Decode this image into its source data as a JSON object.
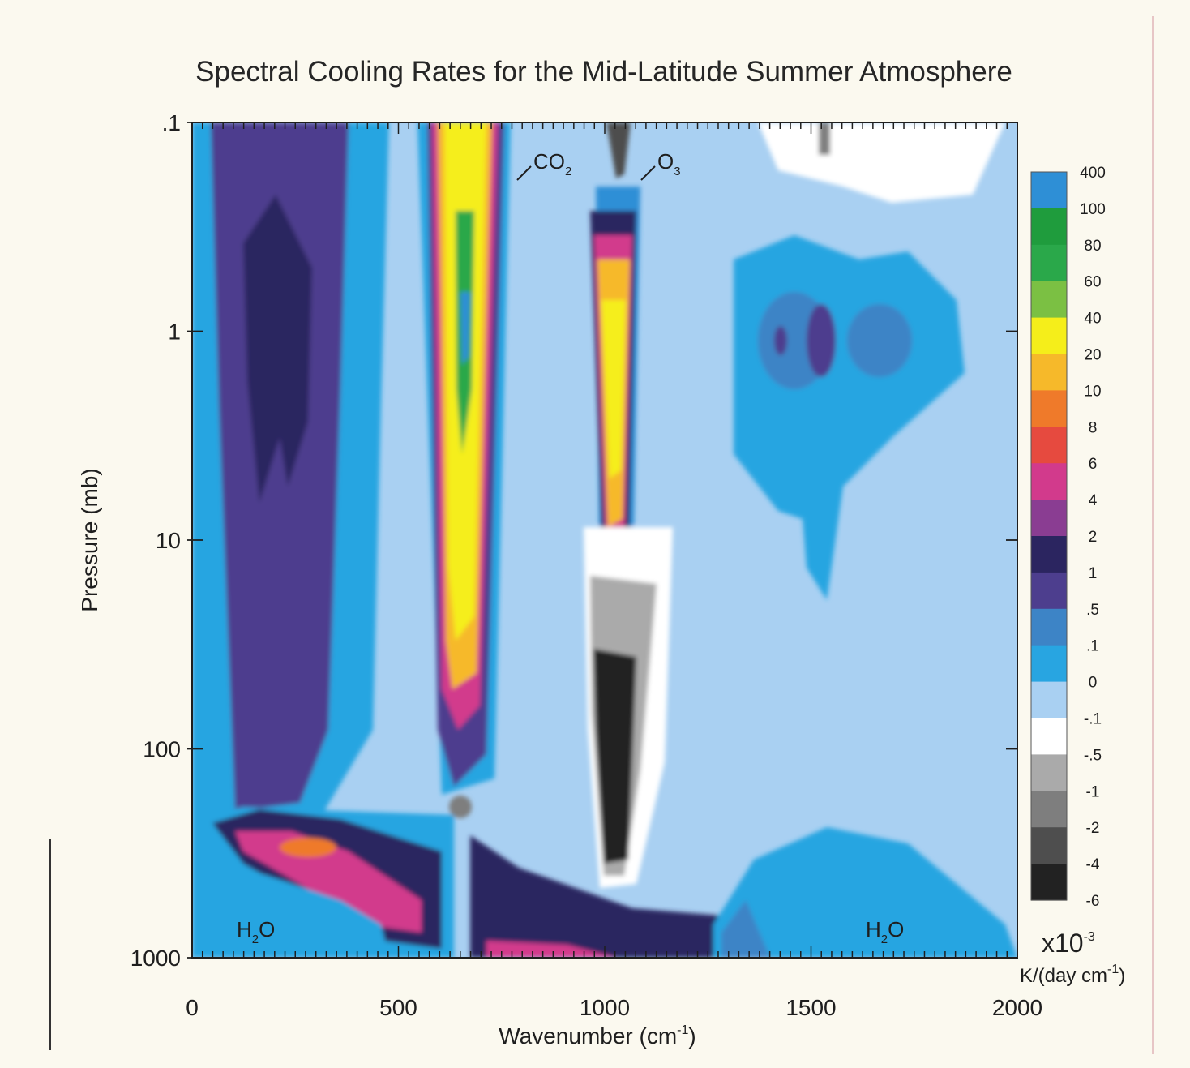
{
  "chart_data": {
    "type": "heatmap",
    "title": "Spectral Cooling Rates for the Mid-Latitude Summer Atmosphere",
    "xlabel": "Wavenumber (cm",
    "xlabel_sup": "-1",
    "xlabel_close": ")",
    "ylabel": "Pressure (mb)",
    "xlim": [
      0,
      2000
    ],
    "ylim": [
      0.1,
      1000
    ],
    "y_scale": "log",
    "y_inverted": true,
    "x_ticks": [
      0,
      500,
      1000,
      1500,
      2000
    ],
    "x_tick_labels": [
      "0",
      "500",
      "1000",
      "1500",
      "2000"
    ],
    "y_ticks": [
      0.1,
      1,
      10,
      100,
      1000
    ],
    "y_tick_labels": [
      ".1",
      "1",
      "10",
      "100",
      "1000"
    ],
    "colorbar": {
      "levels": [
        "400",
        "100",
        "80",
        "60",
        "40",
        "20",
        "10",
        "8",
        "6",
        "4",
        "2",
        "1",
        ".5",
        ".1",
        "0",
        "-.1",
        "-.5",
        "-1",
        "-2",
        "-4",
        "-6"
      ],
      "colors": [
        "#2e8fd6",
        "#1f9c3d",
        "#2aa84a",
        "#7bc043",
        "#f5ee1a",
        "#f6b92a",
        "#ef7a2a",
        "#e64a3f",
        "#d23a8c",
        "#8a3d92",
        "#2b2560",
        "#4d3e8e",
        "#3d84c6",
        "#28a5e1",
        "#a9d0f2",
        "#ffffff",
        "#aaaaaa",
        "#7e7e7e",
        "#4e4e4e",
        "#222222"
      ],
      "multiplier": "x10",
      "multiplier_exp": "-3",
      "units": "K/(day cm",
      "units_sup": "-1",
      "units_close": ")"
    },
    "annotations": [
      {
        "label": "CO",
        "sub": "2",
        "x": 660,
        "y": 0.15
      },
      {
        "label": "O",
        "sub": "3",
        "x": 1060,
        "y": 0.15
      },
      {
        "label": "H",
        "sub": "2",
        "label2": "O",
        "x": 180,
        "y": 850
      },
      {
        "label": "H",
        "sub": "2",
        "label2": "O",
        "x": 1670,
        "y": 850
      }
    ],
    "regions": [
      {
        "name": "band-0-170",
        "x": [
          0,
          170
        ],
        "y_top": 0.1,
        "y_bottom": 1000,
        "value": "0.5-1"
      },
      {
        "name": "h2o-rotation-band",
        "x": [
          100,
          400
        ],
        "y_top": 0.1,
        "y_bottom": 150,
        "value": "2-4"
      },
      {
        "name": "co2-15um-band",
        "x": [
          600,
          730
        ],
        "y_top": 0.1,
        "y_bottom": 110,
        "value": "10-100"
      },
      {
        "name": "o3-9.6um-band",
        "x": [
          1000,
          1085
        ],
        "y_top": 0.3,
        "y_bottom": 25,
        "value": "20-40"
      },
      {
        "name": "o3-lower-heating",
        "x": [
          980,
          1080
        ],
        "y_top": 10,
        "y_bottom": 500,
        "value": "-2 to -6"
      },
      {
        "name": "h2o-lower-band",
        "x": [
          50,
          620
        ],
        "y_top": 180,
        "y_bottom": 900,
        "value": "6-20"
      },
      {
        "name": "h2o-vibration-band",
        "x": [
          1300,
          1900
        ],
        "y_top": 0.4,
        "y_bottom": 15,
        "value": ".5-2"
      }
    ]
  }
}
